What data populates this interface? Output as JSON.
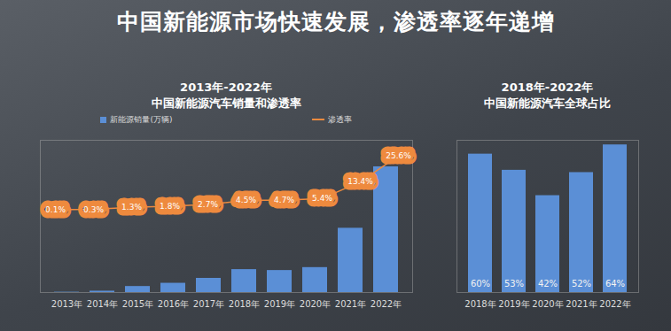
{
  "title": "中国新能源市场快速发展，渗透率逐年递增",
  "chart_data": [
    {
      "type": "bar",
      "title": "2013年-2022年",
      "subtitle": "中国新能源汽车销量和渗透率",
      "categories": [
        "2013年",
        "2014年",
        "2015年",
        "2016年",
        "2017年",
        "2018年",
        "2019年",
        "2020年",
        "2021年",
        "2022年"
      ],
      "series": [
        {
          "name": "新能源销量(万辆)",
          "type": "bar",
          "color": "#5b8fd6",
          "values": [
            1.8,
            7.5,
            33.1,
            50.7,
            77.7,
            125.6,
            120.6,
            136.7,
            352.1,
            688.7
          ]
        },
        {
          "name": "渗透率",
          "type": "line",
          "axis": "y2",
          "color": "#ee8a3e",
          "marker": "none",
          "data_labels": true,
          "values": [
            0.1,
            0.3,
            1.3,
            1.8,
            2.7,
            4.5,
            4.7,
            5.4,
            13.4,
            25.6
          ],
          "value_labels": [
            "0.1%",
            "0.3%",
            "1.3%",
            "1.8%",
            "2.7%",
            "4.5%",
            "4.7%",
            "5.4%",
            "13.4%",
            "25.6%"
          ]
        }
      ],
      "ylim": [
        0,
        834
      ],
      "yticks": [],
      "y2lim": [
        -39,
        33
      ],
      "y2ticks": [],
      "legend": "top",
      "tick_labels": "x",
      "grid": false
    },
    {
      "type": "bar",
      "title": "2018年-2022年",
      "subtitle": "中国新能源汽车全球占比",
      "categories": [
        "2018年",
        "2019年",
        "2020年",
        "2021年",
        "2022年"
      ],
      "values": [
        60,
        53,
        42,
        52,
        64
      ],
      "value_labels": [
        "60%",
        "53%",
        "42%",
        "52%",
        "64%"
      ],
      "color": "#5b8fd6",
      "data_labels": true,
      "ylim": [
        0,
        66
      ],
      "yticks": [],
      "tick_labels": "x",
      "grid": false
    }
  ]
}
